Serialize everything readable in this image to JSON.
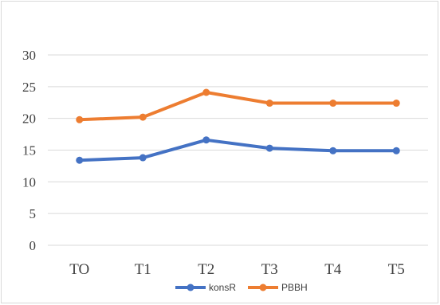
{
  "chart_data": {
    "type": "line",
    "categories": [
      "TO",
      "T1",
      "T2",
      "T3",
      "T4",
      "T5"
    ],
    "series": [
      {
        "name": "konsR",
        "color": "#4472C4",
        "values": [
          13.4,
          13.8,
          16.6,
          15.3,
          14.9,
          14.9
        ]
      },
      {
        "name": "PBBH",
        "color": "#ED7D31",
        "values": [
          19.8,
          20.2,
          24.1,
          22.4,
          22.4,
          22.4
        ]
      }
    ],
    "ylim": [
      0,
      30
    ],
    "yticks": [
      0,
      5,
      10,
      15,
      20,
      25,
      30
    ],
    "grid": true,
    "legend": "bottom"
  }
}
